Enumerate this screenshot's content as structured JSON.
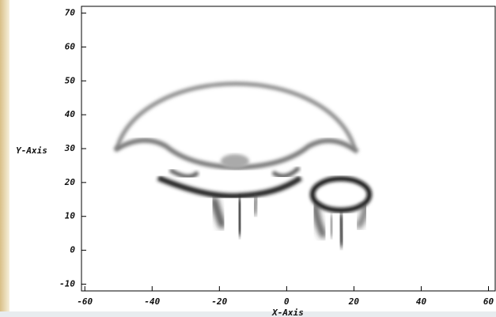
{
  "chart_data": {
    "type": "field",
    "x_label": "X-Axis",
    "y_label": "Y-Axis",
    "xlim": [
      -61,
      62
    ],
    "ylim": [
      -12,
      72
    ],
    "xticks": [
      -60,
      -40,
      -20,
      0,
      20,
      40,
      60
    ],
    "yticks": [
      -10,
      0,
      10,
      20,
      30,
      40,
      50,
      60,
      70
    ]
  }
}
